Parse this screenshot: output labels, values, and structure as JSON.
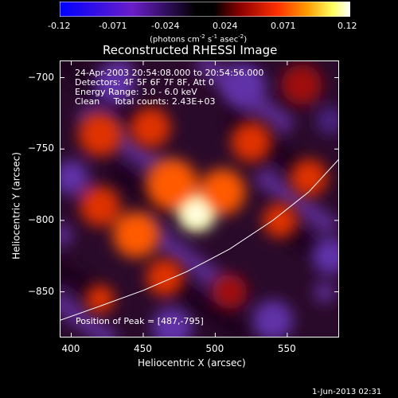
{
  "colorbar": {
    "ticks": [
      "-0.12",
      "-0.071",
      "-0.024",
      "0.024",
      "0.071",
      "0.12"
    ],
    "units": "(photons cm",
    "units_exp1": "-2",
    "units_mid": " s",
    "units_exp2": "-1",
    "units_end": " asec",
    "units_exp3": "-2",
    "units_close": ")",
    "range": [
      -0.12,
      0.12
    ],
    "colors": [
      "#0000ff",
      "#8a2be2",
      "#000000",
      "#8b0000",
      "#ff4500",
      "#ffa500",
      "#ffff66",
      "#ffffff"
    ]
  },
  "chart_data": {
    "type": "heatmap",
    "title": "Reconstructed RHESSI Image",
    "xlabel": "Heliocentric X (arcsec)",
    "ylabel": "Heliocentric Y (arcsec)",
    "xlim": [
      392,
      586
    ],
    "ylim": [
      -882,
      -688
    ],
    "xticks": [
      400,
      450,
      500,
      550
    ],
    "yticks": [
      -700,
      -750,
      -800,
      -850
    ],
    "info_lines": [
      "24-Apr-2003 20:54:08.000 to 20:54:56.000",
      "Detectors: 4F 5F 6F 7F 8F, Att 0",
      "Energy Range: 3.0 - 6.0 keV",
      "Clean     Total counts: 2.43E+03"
    ],
    "peak_label": "Position of Peak = [487,-795]",
    "peak": [
      487,
      -795
    ],
    "limb_curve": [
      [
        392,
        -870
      ],
      [
        420,
        -860
      ],
      [
        450,
        -849
      ],
      [
        480,
        -836
      ],
      [
        510,
        -820
      ],
      [
        540,
        -800
      ],
      [
        565,
        -780
      ],
      [
        586,
        -757
      ]
    ],
    "blobs": [
      {
        "x": 487,
        "y": -795,
        "v": 0.12,
        "r": 13
      },
      {
        "x": 470,
        "y": -775,
        "v": 0.06,
        "r": 18
      },
      {
        "x": 505,
        "y": -780,
        "v": 0.05,
        "r": 16
      },
      {
        "x": 445,
        "y": -810,
        "v": 0.055,
        "r": 16
      },
      {
        "x": 420,
        "y": -740,
        "v": 0.045,
        "r": 15
      },
      {
        "x": 455,
        "y": -735,
        "v": 0.04,
        "r": 14
      },
      {
        "x": 525,
        "y": -745,
        "v": 0.045,
        "r": 14
      },
      {
        "x": 565,
        "y": -770,
        "v": 0.04,
        "r": 13
      },
      {
        "x": 545,
        "y": -800,
        "v": 0.035,
        "r": 12
      },
      {
        "x": 420,
        "y": -790,
        "v": 0.04,
        "r": 14
      },
      {
        "x": 465,
        "y": -840,
        "v": 0.035,
        "r": 13
      },
      {
        "x": 510,
        "y": -850,
        "v": 0.03,
        "r": 12
      },
      {
        "x": 420,
        "y": -855,
        "v": 0.045,
        "r": 10
      },
      {
        "x": 560,
        "y": -705,
        "v": 0.025,
        "r": 14
      },
      {
        "x": 430,
        "y": -705,
        "v": -0.03,
        "r": 14
      },
      {
        "x": 520,
        "y": -705,
        "v": -0.03,
        "r": 15
      },
      {
        "x": 400,
        "y": -770,
        "v": -0.03,
        "r": 12
      },
      {
        "x": 580,
        "y": -825,
        "v": -0.035,
        "r": 13
      },
      {
        "x": 540,
        "y": -870,
        "v": -0.035,
        "r": 14
      },
      {
        "x": 470,
        "y": -875,
        "v": -0.03,
        "r": 14
      },
      {
        "x": 580,
        "y": -730,
        "v": -0.02,
        "r": 10
      }
    ]
  },
  "footer": {
    "date": "1-Jun-2013 02:31"
  }
}
